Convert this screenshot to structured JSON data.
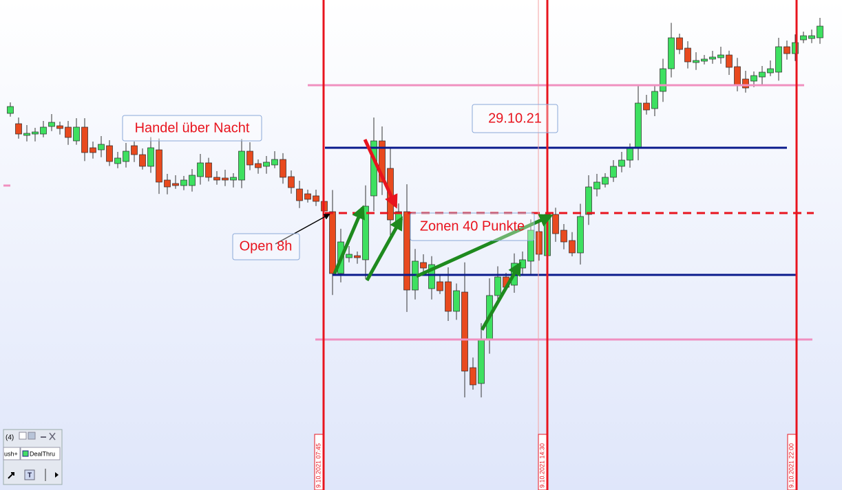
{
  "annotations": {
    "overnight": "Handel über Nacht",
    "date": "29.10.21",
    "zones": "Zonen 40 Punkte",
    "open": "Open 8h"
  },
  "time_markers": [
    "9.10.2021 07:45",
    "9.10.2021 14:30",
    "9.10.2021 22:00"
  ],
  "toolbar": {
    "count": "(4)",
    "tab1": "ush+",
    "tab2": "DealThru",
    "tool": "T"
  }
}
